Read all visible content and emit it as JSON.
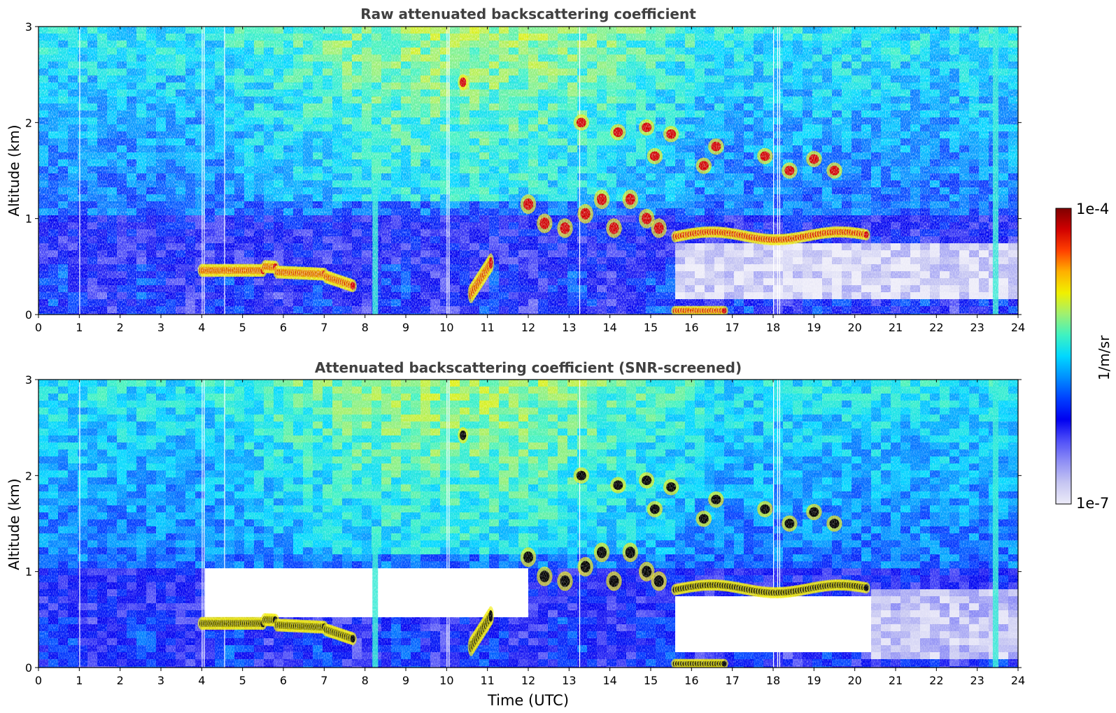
{
  "chart_data": [
    {
      "type": "heatmap",
      "title": "Raw attenuated backscattering coefficient",
      "xlabel": "",
      "ylabel": "Altitude (km)",
      "xlim": [
        0,
        24
      ],
      "ylim": [
        0,
        3
      ],
      "x_ticks": [
        "0",
        "1",
        "2",
        "3",
        "4",
        "5",
        "6",
        "7",
        "8",
        "9",
        "10",
        "11",
        "12",
        "13",
        "14",
        "15",
        "16",
        "17",
        "18",
        "19",
        "20",
        "21",
        "22",
        "23",
        "24"
      ],
      "y_ticks": [
        "0",
        "1",
        "2",
        "3"
      ],
      "screened": false,
      "features": [
        {
          "name": "boundary-layer top",
          "start_utc": 4.0,
          "end_utc": 7.7,
          "altitude_km": [
            0.48,
            0.32
          ]
        },
        {
          "name": "elevated aerosol",
          "start_utc": 10.6,
          "end_utc": 11.1,
          "altitude_km": [
            0.2,
            0.6
          ]
        },
        {
          "name": "high cloud patch",
          "time_utc": 10.4,
          "altitude_km": 2.4
        },
        {
          "name": "cloud layer",
          "start_utc": 12.0,
          "end_utc": 15.5,
          "altitude_km": [
            0.9,
            2.0
          ]
        },
        {
          "name": "stratus layer",
          "start_utc": 15.6,
          "end_utc": 20.3,
          "altitude_km": 0.82
        },
        {
          "name": "upper cloud fragments",
          "start_utc": 16.4,
          "end_utc": 19.5,
          "altitude_km": [
            1.5,
            1.75
          ]
        }
      ]
    },
    {
      "type": "heatmap",
      "title": "Attenuated backscattering coefficient (SNR-screened)",
      "xlabel": "Time (UTC)",
      "ylabel": "Altitude (km)",
      "xlim": [
        0,
        24
      ],
      "ylim": [
        0,
        3
      ],
      "x_ticks": [
        "0",
        "1",
        "2",
        "3",
        "4",
        "5",
        "6",
        "7",
        "8",
        "9",
        "10",
        "11",
        "12",
        "13",
        "14",
        "15",
        "16",
        "17",
        "18",
        "19",
        "20",
        "21",
        "22",
        "23",
        "24"
      ],
      "y_ticks": [
        "0",
        "1",
        "2",
        "3"
      ],
      "screened": true
    }
  ],
  "colorbar": {
    "max_label": "1e-4",
    "min_label": "1e-7",
    "unit_label": "1/m/sr",
    "colors": [
      "#ecebf8",
      "#c6c6f2",
      "#8f8ff5",
      "#4f4ff8",
      "#0000f0",
      "#0040ff",
      "#0090ff",
      "#00d8ff",
      "#3ef2c2",
      "#a0f070",
      "#f0f000",
      "#ffb000",
      "#ff4000",
      "#d00000",
      "#800000"
    ]
  },
  "panel_colors": {
    "title": "#404040",
    "cloud_core_screened": "#000000"
  }
}
